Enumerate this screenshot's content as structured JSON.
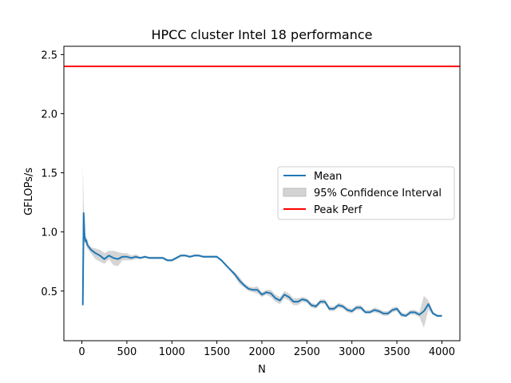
{
  "chart_data": {
    "type": "line",
    "title": "HPCC cluster Intel 18 performance",
    "xlabel": "N",
    "ylabel": "GFLOPs/s",
    "xlim": [
      -200,
      4200
    ],
    "ylim": [
      0.08,
      2.57
    ],
    "xticks": [
      {
        "value": 0,
        "label": "0"
      },
      {
        "value": 500,
        "label": "500"
      },
      {
        "value": 1000,
        "label": "1000"
      },
      {
        "value": 1500,
        "label": "1500"
      },
      {
        "value": 2000,
        "label": "2000"
      },
      {
        "value": 2500,
        "label": "2500"
      },
      {
        "value": 3000,
        "label": "3000"
      },
      {
        "value": 3500,
        "label": "3500"
      },
      {
        "value": 4000,
        "label": "4000"
      }
    ],
    "yticks": [
      {
        "value": 0.5,
        "label": "0.5"
      },
      {
        "value": 1.0,
        "label": "1.0"
      },
      {
        "value": 1.5,
        "label": "1.5"
      },
      {
        "value": 2.0,
        "label": "2.0"
      },
      {
        "value": 2.5,
        "label": "2.5"
      }
    ],
    "grid": false,
    "legend_position": "center-right",
    "series": [
      {
        "name": "Mean",
        "color": "#1f77b4",
        "x": [
          10,
          20,
          30,
          40,
          50,
          60,
          80,
          100,
          150,
          200,
          250,
          300,
          350,
          400,
          450,
          500,
          550,
          600,
          650,
          700,
          750,
          800,
          850,
          900,
          950,
          1000,
          1050,
          1100,
          1150,
          1200,
          1250,
          1300,
          1350,
          1400,
          1450,
          1500,
          1550,
          1600,
          1650,
          1700,
          1750,
          1800,
          1850,
          1900,
          1950,
          2000,
          2050,
          2100,
          2150,
          2200,
          2250,
          2300,
          2350,
          2400,
          2450,
          2500,
          2550,
          2600,
          2650,
          2700,
          2750,
          2800,
          2850,
          2900,
          2950,
          3000,
          3050,
          3100,
          3150,
          3200,
          3250,
          3300,
          3350,
          3400,
          3450,
          3500,
          3550,
          3600,
          3650,
          3700,
          3750,
          3800,
          3850,
          3900,
          3950,
          4000
        ],
        "mean": [
          0.38,
          1.16,
          0.97,
          0.92,
          0.93,
          0.89,
          0.87,
          0.85,
          0.82,
          0.8,
          0.77,
          0.8,
          0.78,
          0.77,
          0.79,
          0.79,
          0.78,
          0.79,
          0.78,
          0.79,
          0.78,
          0.78,
          0.78,
          0.78,
          0.76,
          0.76,
          0.78,
          0.8,
          0.8,
          0.79,
          0.8,
          0.8,
          0.79,
          0.79,
          0.79,
          0.79,
          0.76,
          0.72,
          0.68,
          0.64,
          0.59,
          0.55,
          0.52,
          0.51,
          0.51,
          0.47,
          0.49,
          0.48,
          0.44,
          0.42,
          0.47,
          0.45,
          0.41,
          0.41,
          0.43,
          0.42,
          0.38,
          0.37,
          0.41,
          0.41,
          0.35,
          0.35,
          0.38,
          0.37,
          0.34,
          0.33,
          0.36,
          0.36,
          0.32,
          0.32,
          0.34,
          0.33,
          0.31,
          0.31,
          0.34,
          0.35,
          0.3,
          0.29,
          0.32,
          0.32,
          0.3,
          0.33,
          0.39,
          0.31,
          0.29,
          0.29
        ]
      },
      {
        "name": "95% Confidence Interval",
        "color": "#d3d3d3",
        "x": [
          10,
          20,
          30,
          40,
          50,
          60,
          80,
          100,
          150,
          200,
          250,
          300,
          350,
          400,
          450,
          500,
          550,
          600,
          650,
          700,
          750,
          800,
          850,
          900,
          950,
          1000,
          1050,
          1100,
          1150,
          1200,
          1250,
          1300,
          1350,
          1400,
          1450,
          1500,
          1550,
          1600,
          1650,
          1700,
          1750,
          1800,
          1850,
          1900,
          1950,
          2000,
          2050,
          2100,
          2150,
          2200,
          2250,
          2300,
          2350,
          2400,
          2450,
          2500,
          2550,
          2600,
          2650,
          2700,
          2750,
          2800,
          2850,
          2900,
          2950,
          3000,
          3050,
          3100,
          3150,
          3200,
          3250,
          3300,
          3350,
          3400,
          3450,
          3500,
          3550,
          3600,
          3650,
          3700,
          3750,
          3800,
          3850,
          3900,
          3950,
          4000
        ],
        "lower": [
          0.26,
          0.75,
          0.92,
          0.89,
          0.9,
          0.86,
          0.84,
          0.82,
          0.77,
          0.75,
          0.73,
          0.77,
          0.72,
          0.71,
          0.76,
          0.76,
          0.76,
          0.77,
          0.77,
          0.78,
          0.77,
          0.77,
          0.77,
          0.77,
          0.75,
          0.75,
          0.77,
          0.79,
          0.79,
          0.78,
          0.79,
          0.79,
          0.78,
          0.78,
          0.78,
          0.78,
          0.75,
          0.71,
          0.67,
          0.62,
          0.56,
          0.53,
          0.5,
          0.49,
          0.48,
          0.45,
          0.47,
          0.45,
          0.41,
          0.39,
          0.44,
          0.42,
          0.38,
          0.38,
          0.41,
          0.4,
          0.36,
          0.35,
          0.39,
          0.39,
          0.33,
          0.33,
          0.36,
          0.35,
          0.32,
          0.31,
          0.34,
          0.34,
          0.31,
          0.31,
          0.32,
          0.31,
          0.29,
          0.29,
          0.32,
          0.33,
          0.28,
          0.28,
          0.3,
          0.3,
          0.28,
          0.19,
          0.34,
          0.3,
          0.28,
          0.28
        ],
        "upper": [
          1.57,
          1.24,
          1.02,
          0.95,
          0.96,
          0.92,
          0.9,
          0.87,
          0.86,
          0.85,
          0.82,
          0.84,
          0.84,
          0.83,
          0.82,
          0.82,
          0.8,
          0.81,
          0.79,
          0.8,
          0.79,
          0.79,
          0.79,
          0.79,
          0.77,
          0.77,
          0.79,
          0.81,
          0.81,
          0.8,
          0.81,
          0.81,
          0.8,
          0.8,
          0.8,
          0.8,
          0.77,
          0.73,
          0.69,
          0.66,
          0.62,
          0.57,
          0.54,
          0.53,
          0.54,
          0.49,
          0.51,
          0.51,
          0.47,
          0.45,
          0.5,
          0.48,
          0.44,
          0.44,
          0.45,
          0.44,
          0.4,
          0.39,
          0.43,
          0.43,
          0.37,
          0.37,
          0.4,
          0.39,
          0.36,
          0.35,
          0.38,
          0.38,
          0.34,
          0.34,
          0.36,
          0.35,
          0.33,
          0.33,
          0.36,
          0.37,
          0.32,
          0.31,
          0.34,
          0.34,
          0.32,
          0.46,
          0.42,
          0.33,
          0.3,
          0.3
        ]
      },
      {
        "name": "Peak Perf",
        "color": "#ff0000",
        "y": 2.4
      }
    ]
  }
}
